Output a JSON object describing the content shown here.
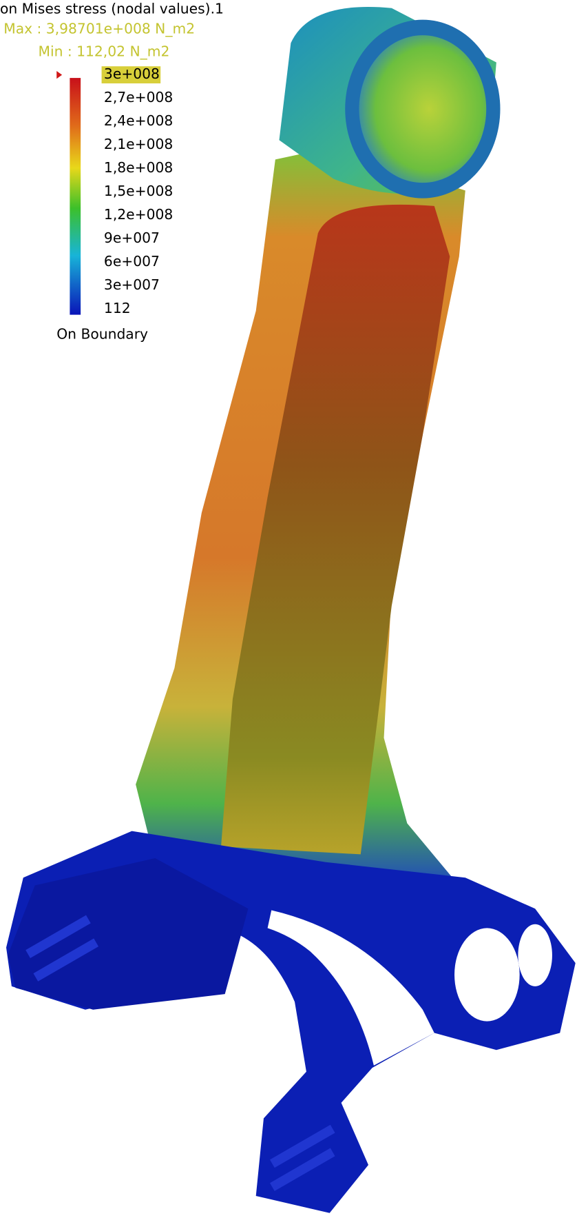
{
  "title": "on Mises stress (nodal values).1",
  "max": "Max : 3,98701e+008 N_m2",
  "min": "Min : 112,02 N_m2",
  "legend": {
    "labels": [
      "3e+008",
      "2,7e+008",
      "2,4e+008",
      "2,1e+008",
      "1,8e+008",
      "1,5e+008",
      "1,2e+008",
      "9e+007",
      "6e+007",
      "3e+007",
      "112"
    ],
    "footer": "On Boundary"
  }
}
